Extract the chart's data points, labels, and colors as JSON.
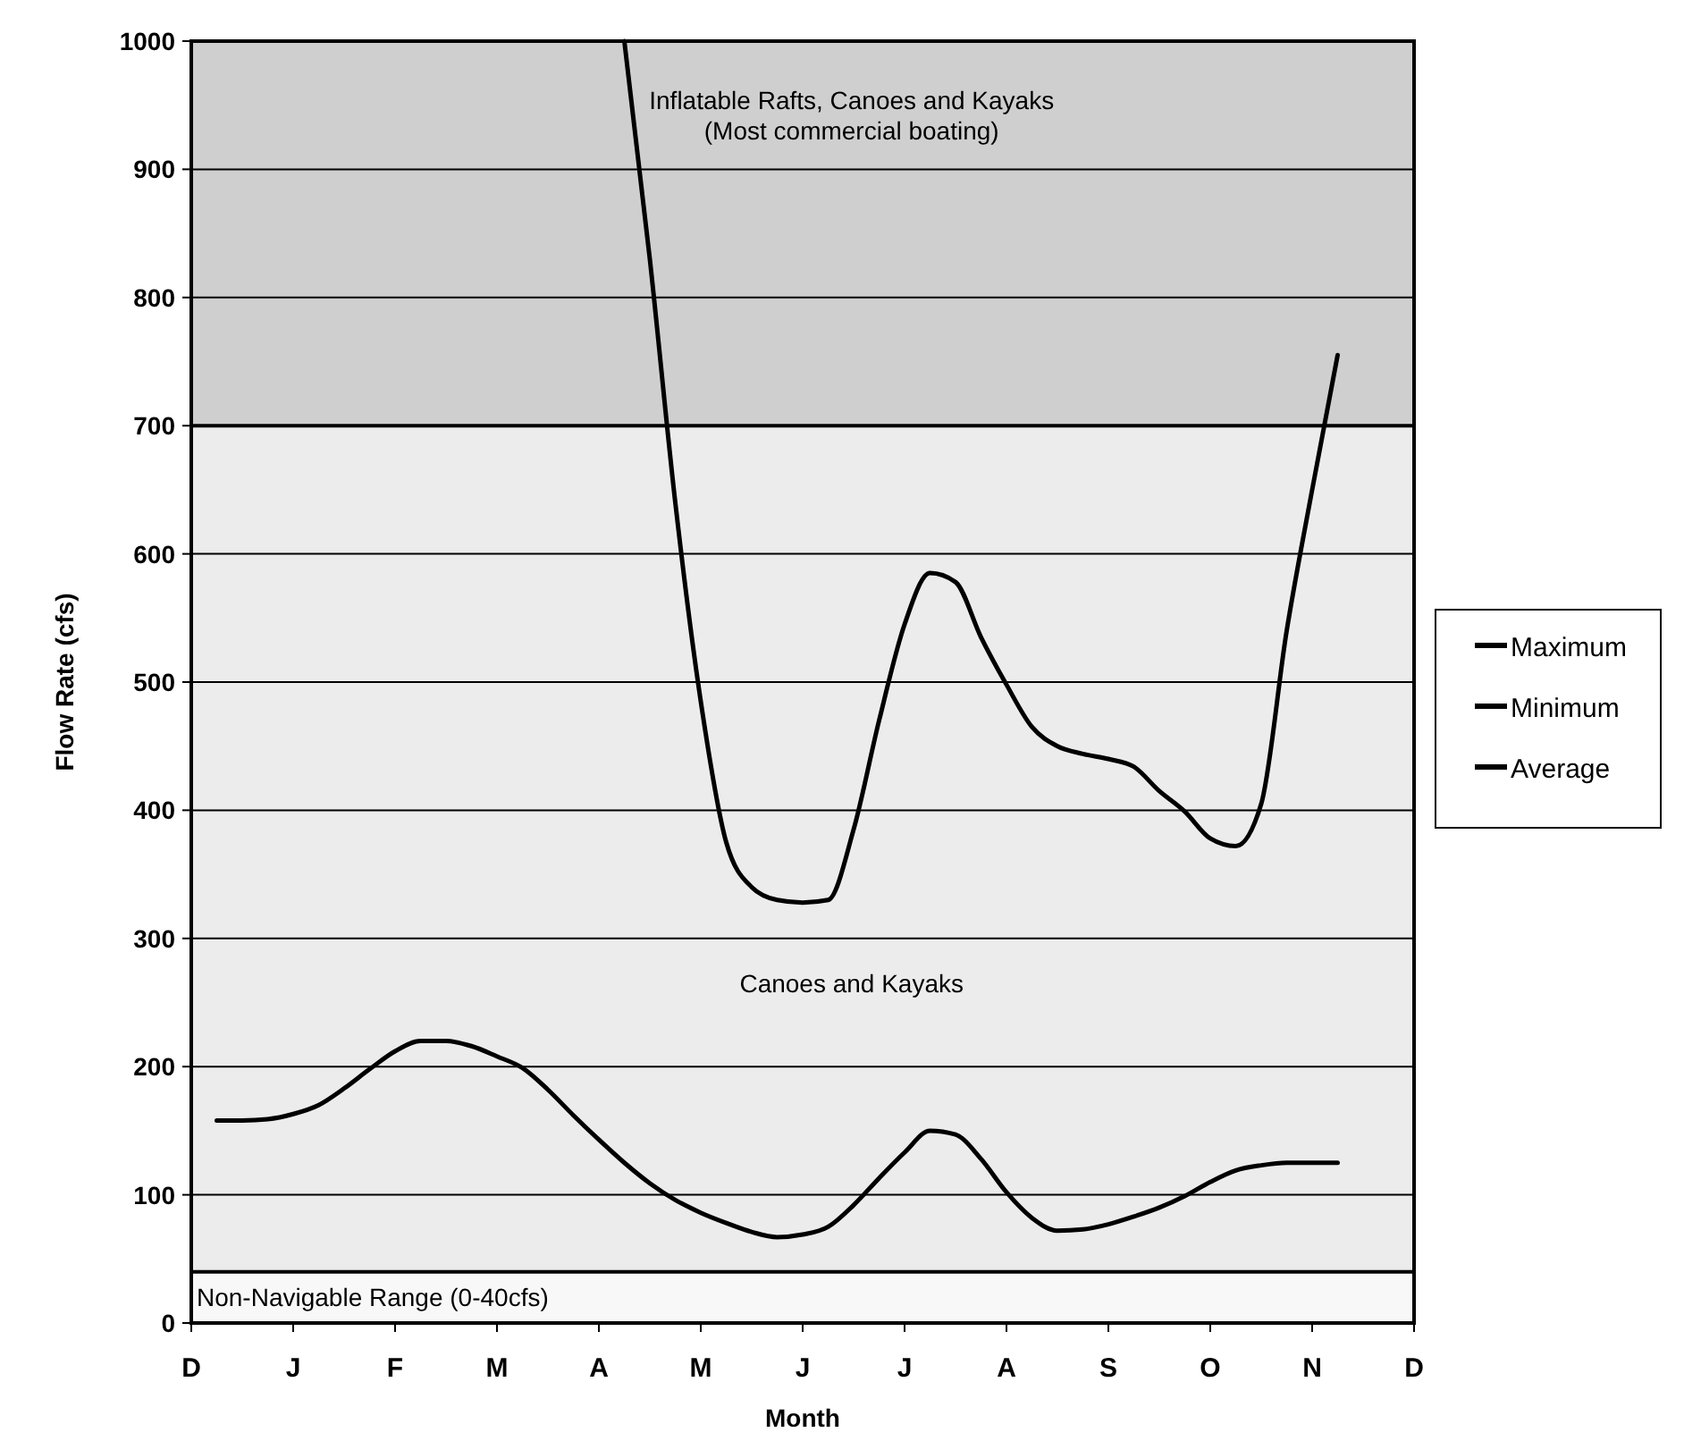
{
  "chart_data": {
    "type": "line",
    "xlabel": "Month",
    "ylabel": "Flow Rate (cfs)",
    "categories": [
      "D",
      null,
      null,
      null,
      "J",
      null,
      null,
      null,
      "F",
      null,
      null,
      null,
      "M",
      null,
      null,
      null,
      "A",
      null,
      null,
      null,
      "M",
      null,
      null,
      null,
      "J",
      null,
      null,
      null,
      "J",
      null,
      null,
      null,
      "A",
      null,
      null,
      null,
      "S",
      null,
      null,
      null,
      "O",
      null,
      null,
      null,
      "N",
      null,
      null,
      null,
      "D"
    ],
    "ylim": [
      0,
      1000
    ],
    "yticks": [
      0,
      100,
      200,
      300,
      400,
      500,
      600,
      700,
      800,
      900,
      1000
    ],
    "grid": "y",
    "legend": "right",
    "line_style": "solid",
    "bands": [
      {
        "axis": "y",
        "from": 0,
        "to": 40,
        "label": "Non-Navigable Range (0-40cfs)",
        "color": "#f8f8f8"
      },
      {
        "axis": "y",
        "from": 40,
        "to": 700,
        "label": "Canoes and Kayaks",
        "color": "#ececec"
      },
      {
        "axis": "y",
        "from": 700,
        "to": 1000,
        "label": "Inflatable Rafts, Canoes and Kayaks\n(Most commercial boating)",
        "color": "#cfcfcf"
      }
    ],
    "ref_lines": [
      {
        "axis": "y",
        "value": 40,
        "color": "#000000"
      },
      {
        "axis": "y",
        "value": 700,
        "color": "#000000"
      }
    ],
    "series": [
      {
        "name": "Maximum",
        "color": "#000000",
        "values": [
          null,
          null,
          null,
          null,
          null,
          null,
          null,
          null,
          null,
          null,
          null,
          null,
          null,
          null,
          null,
          null,
          null,
          null,
          null,
          null,
          null,
          null,
          null,
          null,
          null,
          null,
          null,
          null,
          null,
          null,
          null,
          null,
          null,
          null,
          null,
          null,
          null,
          null,
          null,
          null,
          null,
          null,
          null,
          null,
          null,
          null,
          null,
          null,
          null
        ]
      },
      {
        "name": "Minimum",
        "color": "#000000",
        "values": [
          null,
          158,
          158,
          159,
          163,
          170,
          183,
          198,
          212,
          220,
          220,
          216,
          208,
          199,
          182,
          162,
          143,
          125,
          109,
          96,
          86,
          78,
          71,
          67,
          69,
          75,
          92,
          113,
          133,
          150,
          147,
          128,
          102,
          82,
          72,
          73,
          77,
          83,
          90,
          99,
          110,
          119,
          123,
          125,
          125,
          125,
          null,
          null,
          null
        ]
      },
      {
        "name": "Average",
        "color": "#000000",
        "values": [
          null,
          null,
          null,
          null,
          null,
          null,
          null,
          null,
          null,
          null,
          null,
          null,
          null,
          null,
          null,
          null,
          null,
          1000,
          830,
          640,
          485,
          375,
          340,
          330,
          328,
          330,
          385,
          470,
          545,
          585,
          578,
          535,
          498,
          465,
          450,
          444,
          440,
          434,
          415,
          399,
          378,
          372,
          405,
          540,
          650,
          755,
          null,
          null,
          null
        ]
      }
    ]
  }
}
